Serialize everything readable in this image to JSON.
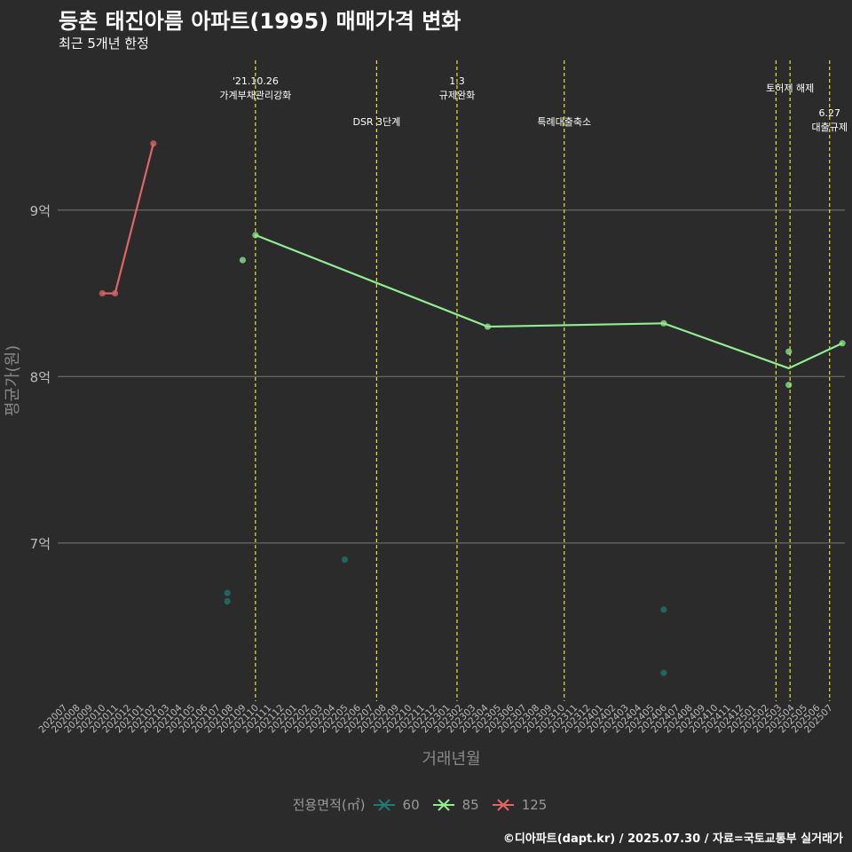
{
  "header": {
    "title": "등촌 태진아름 아파트(1995) 매매가격 변화",
    "subtitle": "최근 5개년 한정"
  },
  "footer": {
    "caption": "©디아파트(dapt.kr) / 2025.07.30 / 자료=국토교통부 실거래가"
  },
  "colors": {
    "background": "#2b2b2b",
    "grid": "#7a7a7a",
    "vline": "#e6e627",
    "s60": "#1f7a72",
    "s85": "#90ee90",
    "s125": "#e06666"
  },
  "chart_data": {
    "type": "line",
    "title": "등촌 태진아름 아파트(1995) 매매가격 변화",
    "xlabel": "거래년월",
    "ylabel": "평균가(원)",
    "categories": [
      "202007",
      "202008",
      "202009",
      "202010",
      "202011",
      "202012",
      "202101",
      "202102",
      "202103",
      "202104",
      "202105",
      "202106",
      "202107",
      "202108",
      "202109",
      "202110",
      "202111",
      "202112",
      "202201",
      "202202",
      "202203",
      "202204",
      "202205",
      "202206",
      "202207",
      "202208",
      "202209",
      "202210",
      "202211",
      "202212",
      "202301",
      "202302",
      "202303",
      "202304",
      "202305",
      "202306",
      "202307",
      "202308",
      "202309",
      "202310",
      "202311",
      "202312",
      "202401",
      "202402",
      "202403",
      "202404",
      "202405",
      "202406",
      "202407",
      "202408",
      "202409",
      "202410",
      "202411",
      "202412",
      "202501",
      "202502",
      "202503",
      "202504",
      "202505",
      "202506",
      "202507"
    ],
    "y_ticks": [
      {
        "value": 7.0,
        "label": "7억"
      },
      {
        "value": 8.0,
        "label": "8억"
      },
      {
        "value": 9.0,
        "label": "9억"
      }
    ],
    "ylim": [
      6.05,
      9.9
    ],
    "xlim": [
      -0.5,
      61.2
    ],
    "legend": {
      "title": "전용면적(㎡)",
      "placement": "bottom",
      "items": [
        "60",
        "85",
        "125"
      ]
    },
    "events": [
      {
        "x": 15.0,
        "label": "'21.10.26\n가계부채관리강화",
        "row": 1
      },
      {
        "x": 24.5,
        "label": "DSR 3단계",
        "row": 2
      },
      {
        "x": 30.8,
        "label": "1.3\n규제완화",
        "row": 1
      },
      {
        "x": 39.2,
        "label": "특례대출축소",
        "row": 2
      },
      {
        "x": 55.8,
        "label": "",
        "row": 0
      },
      {
        "x": 56.9,
        "label": "토허제 해제",
        "row": 1
      },
      {
        "x": 60.0,
        "label": "6.27\n대출규제",
        "row": 2
      }
    ],
    "series": [
      {
        "name": "60",
        "line": [],
        "points": [
          [
            12.8,
            6.7
          ],
          [
            12.8,
            6.65
          ],
          [
            22.0,
            6.9
          ],
          [
            47.0,
            6.6
          ],
          [
            47.0,
            6.22
          ]
        ]
      },
      {
        "name": "85",
        "line": [
          [
            15.0,
            8.85
          ],
          [
            33.2,
            8.3
          ],
          [
            47.0,
            8.32
          ],
          [
            56.8,
            8.05
          ],
          [
            61.0,
            8.2
          ]
        ],
        "points": [
          [
            14.0,
            8.7
          ],
          [
            15.0,
            8.85
          ],
          [
            33.2,
            8.3
          ],
          [
            47.0,
            8.32
          ],
          [
            56.8,
            8.15
          ],
          [
            56.8,
            7.95
          ],
          [
            61.0,
            8.2
          ]
        ]
      },
      {
        "name": "125",
        "line": [
          [
            3.0,
            8.5
          ],
          [
            4.0,
            8.5
          ],
          [
            7.0,
            9.4
          ]
        ],
        "points": [
          [
            3.0,
            8.5
          ],
          [
            4.0,
            8.5
          ],
          [
            7.0,
            9.4
          ]
        ]
      }
    ]
  }
}
